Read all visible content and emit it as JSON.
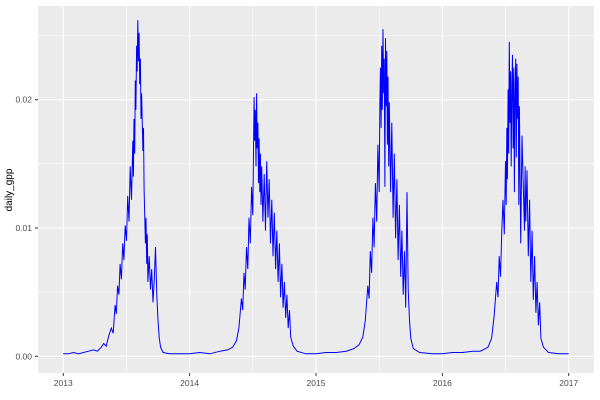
{
  "chart_data": {
    "type": "line",
    "title": "",
    "xlabel": "",
    "ylabel": "daily_gpp",
    "legend_position": "none",
    "grid": "on",
    "x_axis": {
      "lim": [
        2012.8,
        2017.2
      ],
      "ticks": [
        {
          "v": 2013,
          "label": "2013"
        },
        {
          "v": 2014,
          "label": "2014"
        },
        {
          "v": 2015,
          "label": "2015"
        },
        {
          "v": 2016,
          "label": "2016"
        },
        {
          "v": 2017,
          "label": "2017"
        }
      ],
      "minor": [
        2013.5,
        2014.5,
        2015.5,
        2016.5
      ]
    },
    "y_axis": {
      "lim": [
        -0.0013,
        0.0273
      ],
      "ticks": [
        {
          "v": 0.0,
          "label": "0.00"
        },
        {
          "v": 0.01,
          "label": "0.01"
        },
        {
          "v": 0.02,
          "label": "0.02"
        }
      ],
      "minor": [
        0.005,
        0.015,
        0.025
      ]
    },
    "style": {
      "figure_bg": "#FFFFFF",
      "panel_bg": "#EBEBEB",
      "grid_major": "#FFFFFF",
      "grid_minor": "#FFFFFF",
      "grid_major_width": 1.1,
      "grid_minor_width": 0.55,
      "line_color": "#0000FF",
      "line_width": 1,
      "tick_mark_color": "#333333",
      "tick_label_color": "#4D4D4D",
      "axis_title_color": "#000000"
    },
    "series": [
      {
        "name": "daily_gpp",
        "points": [
          [
            2013.0,
            0.0002
          ],
          [
            2013.04,
            0.0002
          ],
          [
            2013.08,
            0.0003
          ],
          [
            2013.12,
            0.0002
          ],
          [
            2013.16,
            0.0003
          ],
          [
            2013.2,
            0.0004
          ],
          [
            2013.24,
            0.0005
          ],
          [
            2013.27,
            0.0004
          ],
          [
            2013.3,
            0.0007
          ],
          [
            2013.32,
            0.001
          ],
          [
            2013.34,
            0.0008
          ],
          [
            2013.36,
            0.0016
          ],
          [
            2013.38,
            0.0022
          ],
          [
            2013.395,
            0.0018
          ],
          [
            2013.41,
            0.004
          ],
          [
            2013.42,
            0.0033
          ],
          [
            2013.43,
            0.0055
          ],
          [
            2013.44,
            0.0048
          ],
          [
            2013.45,
            0.0072
          ],
          [
            2013.46,
            0.006
          ],
          [
            2013.47,
            0.0088
          ],
          [
            2013.48,
            0.0075
          ],
          [
            2013.49,
            0.0102
          ],
          [
            2013.5,
            0.009
          ],
          [
            2013.51,
            0.0125
          ],
          [
            2013.52,
            0.0105
          ],
          [
            2013.53,
            0.0148
          ],
          [
            2013.54,
            0.0122
          ],
          [
            2013.55,
            0.0168
          ],
          [
            2013.555,
            0.014
          ],
          [
            2013.56,
            0.0185
          ],
          [
            2013.565,
            0.0158
          ],
          [
            2013.57,
            0.0215
          ],
          [
            2013.575,
            0.0192
          ],
          [
            2013.58,
            0.0242
          ],
          [
            2013.585,
            0.0222
          ],
          [
            2013.59,
            0.0262
          ],
          [
            2013.595,
            0.023
          ],
          [
            2013.6,
            0.0252
          ],
          [
            2013.605,
            0.0212
          ],
          [
            2013.61,
            0.0232
          ],
          [
            2013.615,
            0.0185
          ],
          [
            2013.62,
            0.0205
          ],
          [
            2013.63,
            0.016
          ],
          [
            2013.635,
            0.0178
          ],
          [
            2013.64,
            0.013
          ],
          [
            2013.65,
            0.0088
          ],
          [
            2013.655,
            0.0108
          ],
          [
            2013.66,
            0.0072
          ],
          [
            2013.665,
            0.0095
          ],
          [
            2013.67,
            0.0058
          ],
          [
            2013.68,
            0.0078
          ],
          [
            2013.69,
            0.0052
          ],
          [
            2013.7,
            0.0068
          ],
          [
            2013.71,
            0.0042
          ],
          [
            2013.72,
            0.006
          ],
          [
            2013.73,
            0.0085
          ],
          [
            2013.74,
            0.0048
          ],
          [
            2013.75,
            0.0028
          ],
          [
            2013.76,
            0.0014
          ],
          [
            2013.77,
            0.0007
          ],
          [
            2013.79,
            0.0003
          ],
          [
            2013.84,
            0.0002
          ],
          [
            2013.92,
            0.0002
          ],
          [
            2014.0,
            0.0002
          ],
          [
            2014.08,
            0.0003
          ],
          [
            2014.16,
            0.0002
          ],
          [
            2014.24,
            0.0004
          ],
          [
            2014.3,
            0.0005
          ],
          [
            2014.34,
            0.0007
          ],
          [
            2014.37,
            0.0012
          ],
          [
            2014.39,
            0.0022
          ],
          [
            2014.41,
            0.0045
          ],
          [
            2014.42,
            0.0036
          ],
          [
            2014.43,
            0.0065
          ],
          [
            2014.44,
            0.0052
          ],
          [
            2014.45,
            0.0085
          ],
          [
            2014.46,
            0.0068
          ],
          [
            2014.47,
            0.0108
          ],
          [
            2014.48,
            0.0088
          ],
          [
            2014.49,
            0.0132
          ],
          [
            2014.5,
            0.011
          ],
          [
            2014.505,
            0.016
          ],
          [
            2014.51,
            0.0202
          ],
          [
            2014.515,
            0.0168
          ],
          [
            2014.52,
            0.0192
          ],
          [
            2014.525,
            0.0148
          ],
          [
            2014.53,
            0.0205
          ],
          [
            2014.535,
            0.0162
          ],
          [
            2014.54,
            0.0182
          ],
          [
            2014.545,
            0.0135
          ],
          [
            2014.55,
            0.017
          ],
          [
            2014.555,
            0.0128
          ],
          [
            2014.56,
            0.0158
          ],
          [
            2014.565,
            0.0118
          ],
          [
            2014.57,
            0.0148
          ],
          [
            2014.58,
            0.0105
          ],
          [
            2014.59,
            0.0142
          ],
          [
            2014.6,
            0.0098
          ],
          [
            2014.61,
            0.0152
          ],
          [
            2014.62,
            0.0108
          ],
          [
            2014.63,
            0.0138
          ],
          [
            2014.64,
            0.0088
          ],
          [
            2014.65,
            0.0122
          ],
          [
            2014.66,
            0.0078
          ],
          [
            2014.67,
            0.0112
          ],
          [
            2014.68,
            0.0068
          ],
          [
            2014.69,
            0.0098
          ],
          [
            2014.7,
            0.0058
          ],
          [
            2014.71,
            0.0088
          ],
          [
            2014.72,
            0.0046
          ],
          [
            2014.73,
            0.0072
          ],
          [
            2014.74,
            0.0038
          ],
          [
            2014.75,
            0.0058
          ],
          [
            2014.76,
            0.003
          ],
          [
            2014.77,
            0.0048
          ],
          [
            2014.78,
            0.0022
          ],
          [
            2014.79,
            0.0036
          ],
          [
            2014.8,
            0.0015
          ],
          [
            2014.82,
            0.0008
          ],
          [
            2014.85,
            0.0004
          ],
          [
            2014.92,
            0.0002
          ],
          [
            2015.0,
            0.0002
          ],
          [
            2015.08,
            0.0003
          ],
          [
            2015.16,
            0.0003
          ],
          [
            2015.24,
            0.0004
          ],
          [
            2015.3,
            0.0006
          ],
          [
            2015.34,
            0.0009
          ],
          [
            2015.37,
            0.0015
          ],
          [
            2015.39,
            0.0028
          ],
          [
            2015.41,
            0.0055
          ],
          [
            2015.42,
            0.0045
          ],
          [
            2015.43,
            0.0082
          ],
          [
            2015.44,
            0.0065
          ],
          [
            2015.45,
            0.0108
          ],
          [
            2015.46,
            0.0085
          ],
          [
            2015.47,
            0.0135
          ],
          [
            2015.48,
            0.0105
          ],
          [
            2015.49,
            0.0165
          ],
          [
            2015.5,
            0.0128
          ],
          [
            2015.505,
            0.0195
          ],
          [
            2015.51,
            0.0225
          ],
          [
            2015.515,
            0.0178
          ],
          [
            2015.52,
            0.0242
          ],
          [
            2015.525,
            0.0192
          ],
          [
            2015.53,
            0.0255
          ],
          [
            2015.535,
            0.0205
          ],
          [
            2015.54,
            0.0232
          ],
          [
            2015.545,
            0.0132
          ],
          [
            2015.55,
            0.0248
          ],
          [
            2015.555,
            0.0195
          ],
          [
            2015.56,
            0.0238
          ],
          [
            2015.565,
            0.0165
          ],
          [
            2015.57,
            0.0218
          ],
          [
            2015.575,
            0.0148
          ],
          [
            2015.58,
            0.0198
          ],
          [
            2015.59,
            0.0128
          ],
          [
            2015.6,
            0.0182
          ],
          [
            2015.61,
            0.0108
          ],
          [
            2015.62,
            0.0158
          ],
          [
            2015.63,
            0.0092
          ],
          [
            2015.64,
            0.0138
          ],
          [
            2015.65,
            0.0075
          ],
          [
            2015.66,
            0.0118
          ],
          [
            2015.67,
            0.0062
          ],
          [
            2015.68,
            0.0098
          ],
          [
            2015.69,
            0.0048
          ],
          [
            2015.7,
            0.0082
          ],
          [
            2015.71,
            0.0038
          ],
          [
            2015.72,
            0.0128
          ],
          [
            2015.73,
            0.0052
          ],
          [
            2015.74,
            0.0028
          ],
          [
            2015.75,
            0.0014
          ],
          [
            2015.77,
            0.0006
          ],
          [
            2015.82,
            0.0003
          ],
          [
            2015.92,
            0.0002
          ],
          [
            2016.0,
            0.0002
          ],
          [
            2016.08,
            0.0003
          ],
          [
            2016.16,
            0.0003
          ],
          [
            2016.24,
            0.0004
          ],
          [
            2016.3,
            0.0004
          ],
          [
            2016.36,
            0.0007
          ],
          [
            2016.39,
            0.0014
          ],
          [
            2016.41,
            0.0032
          ],
          [
            2016.43,
            0.0058
          ],
          [
            2016.44,
            0.0046
          ],
          [
            2016.45,
            0.0078
          ],
          [
            2016.46,
            0.0062
          ],
          [
            2016.47,
            0.0098
          ],
          [
            2016.48,
            0.0122
          ],
          [
            2016.49,
            0.0095
          ],
          [
            2016.5,
            0.0152
          ],
          [
            2016.505,
            0.0118
          ],
          [
            2016.51,
            0.0178
          ],
          [
            2016.515,
            0.0138
          ],
          [
            2016.52,
            0.0208
          ],
          [
            2016.525,
            0.0158
          ],
          [
            2016.53,
            0.0245
          ],
          [
            2016.535,
            0.0182
          ],
          [
            2016.54,
            0.0222
          ],
          [
            2016.545,
            0.0148
          ],
          [
            2016.55,
            0.0212
          ],
          [
            2016.555,
            0.0235
          ],
          [
            2016.56,
            0.0162
          ],
          [
            2016.565,
            0.0225
          ],
          [
            2016.57,
            0.0128
          ],
          [
            2016.575,
            0.0202
          ],
          [
            2016.58,
            0.0232
          ],
          [
            2016.585,
            0.0155
          ],
          [
            2016.59,
            0.0228
          ],
          [
            2016.595,
            0.0185
          ],
          [
            2016.6,
            0.0218
          ],
          [
            2016.605,
            0.0118
          ],
          [
            2016.61,
            0.0195
          ],
          [
            2016.62,
            0.0088
          ],
          [
            2016.63,
            0.0172
          ],
          [
            2016.64,
            0.0135
          ],
          [
            2016.65,
            0.0098
          ],
          [
            2016.655,
            0.0148
          ],
          [
            2016.66,
            0.0105
          ],
          [
            2016.67,
            0.0145
          ],
          [
            2016.68,
            0.0078
          ],
          [
            2016.69,
            0.0122
          ],
          [
            2016.7,
            0.0058
          ],
          [
            2016.71,
            0.0098
          ],
          [
            2016.72,
            0.0044
          ],
          [
            2016.73,
            0.0078
          ],
          [
            2016.74,
            0.0034
          ],
          [
            2016.75,
            0.0058
          ],
          [
            2016.76,
            0.0024
          ],
          [
            2016.77,
            0.0042
          ],
          [
            2016.78,
            0.0014
          ],
          [
            2016.8,
            0.0007
          ],
          [
            2016.84,
            0.0003
          ],
          [
            2016.92,
            0.0002
          ],
          [
            2017.0,
            0.0002
          ]
        ]
      }
    ]
  }
}
